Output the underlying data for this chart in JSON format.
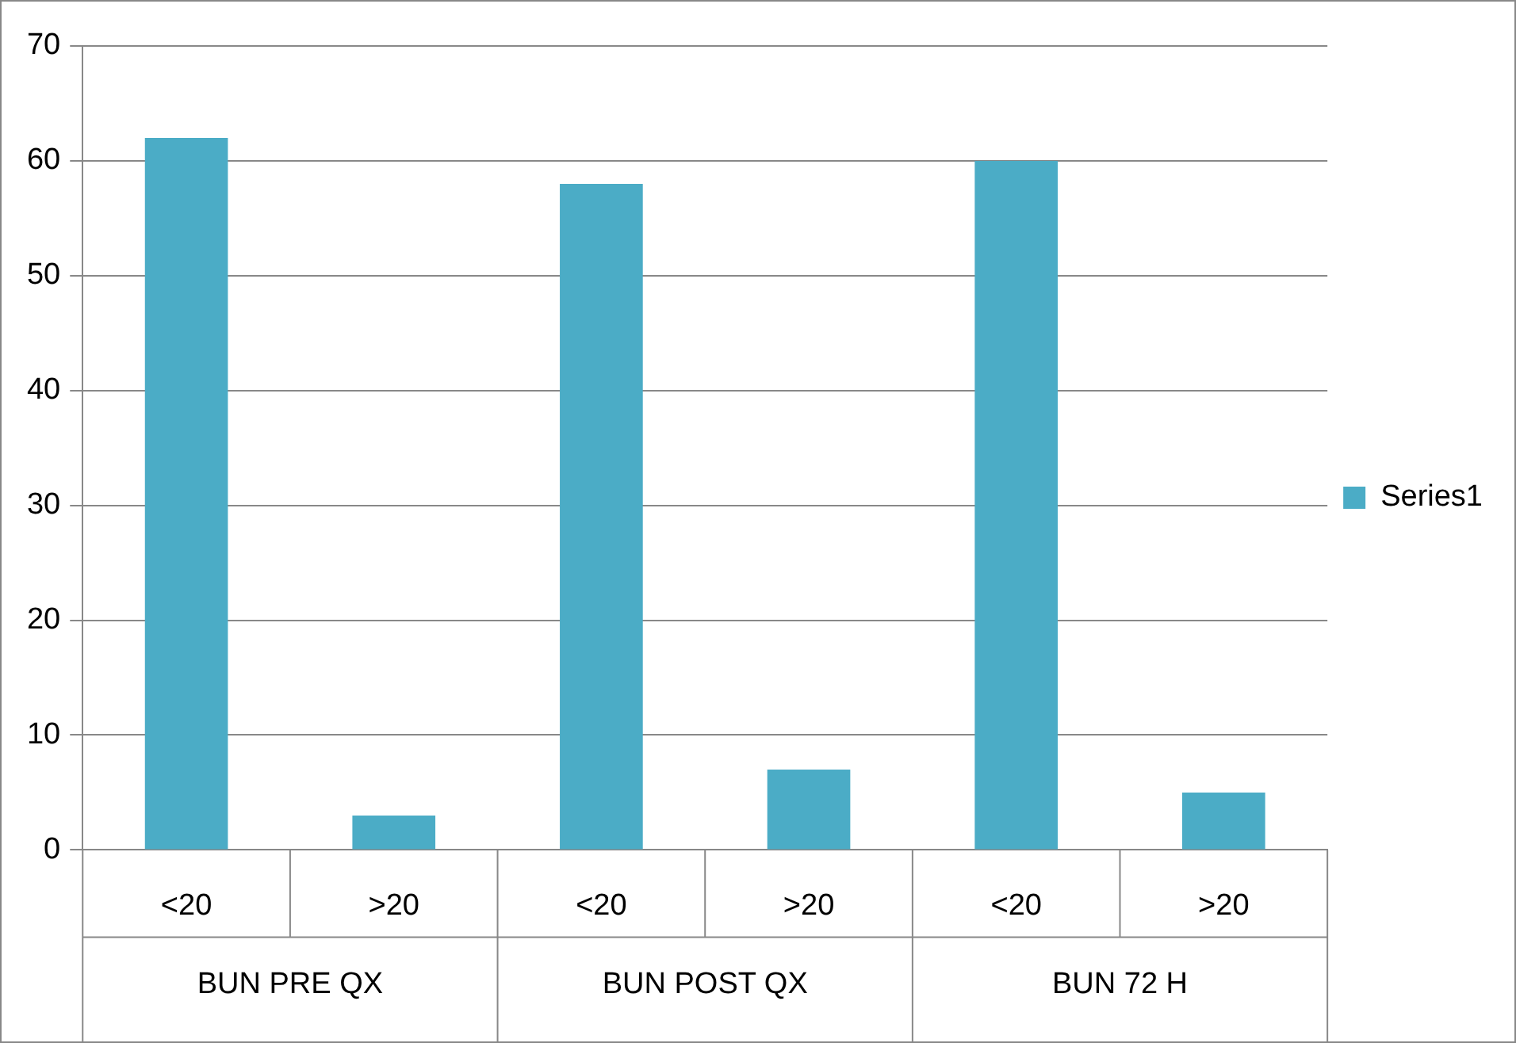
{
  "chart_data": {
    "type": "bar",
    "categories": [
      "<20",
      ">20",
      "<20",
      ">20",
      "<20",
      ">20"
    ],
    "series": [
      {
        "name": "Series1",
        "color": "#4bacc6",
        "values": [
          62,
          3,
          58,
          7,
          60,
          5
        ]
      }
    ],
    "ylim": [
      0,
      70
    ],
    "yticks": [
      0,
      10,
      20,
      30,
      40,
      50,
      60,
      70
    ],
    "grid": "y",
    "legend": "right",
    "annotations": [
      "BUN PRE QX",
      "BUN POST QX",
      "BUN 72 H"
    ]
  }
}
